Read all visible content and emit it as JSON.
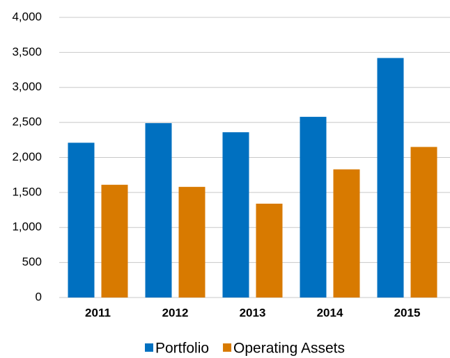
{
  "chart_data": {
    "type": "bar",
    "categories": [
      "2011",
      "2012",
      "2013",
      "2014",
      "2015"
    ],
    "series": [
      {
        "name": "Portfolio",
        "color": "#0070c0",
        "values": [
          2210,
          2490,
          2360,
          2580,
          3420
        ]
      },
      {
        "name": "Operating Assets",
        "color": "#d87a00",
        "values": [
          1610,
          1580,
          1340,
          1830,
          2150
        ]
      }
    ],
    "ylim": [
      0,
      4000
    ],
    "yticks": [
      0,
      500,
      {
        "value": 1000,
        "label": "1,000"
      },
      {
        "value": 1500,
        "label": "1,500"
      },
      {
        "value": 2000,
        "label": "2,000"
      },
      {
        "value": 2500,
        "label": "2,500"
      },
      {
        "value": 3000,
        "label": "3,000"
      },
      {
        "value": 3500,
        "label": "3,500"
      },
      {
        "value": 4000,
        "label": "4,000"
      }
    ],
    "grid": true,
    "legend": "bottom"
  }
}
